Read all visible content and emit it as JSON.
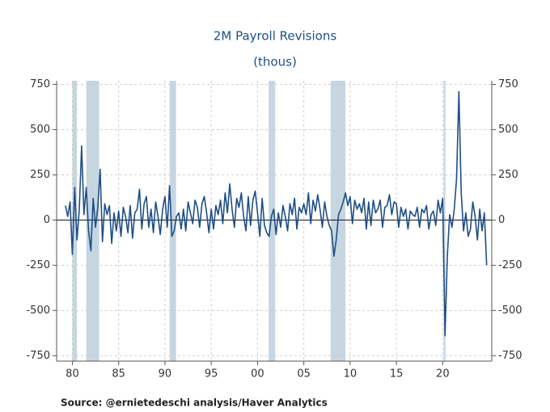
{
  "chart_data": {
    "type": "line",
    "title": "2M Payroll Revisions",
    "subtitle": "(thous)",
    "source": "Source:  @ernietedeschi analysis/Haver Analytics",
    "color": "#1f4e86",
    "recession_color": "#c6d6e1",
    "grid": true,
    "xlim": [
      1978.3,
      2025.3
    ],
    "xticks": [
      {
        "value": 1980,
        "label": "80"
      },
      {
        "value": 1985,
        "label": "85"
      },
      {
        "value": 1990,
        "label": "90"
      },
      {
        "value": 1995,
        "label": "95"
      },
      {
        "value": 2000,
        "label": "00"
      },
      {
        "value": 2005,
        "label": "05"
      },
      {
        "value": 2010,
        "label": "10"
      },
      {
        "value": 2015,
        "label": "15"
      },
      {
        "value": 2020,
        "label": "20"
      }
    ],
    "ylim": [
      -780,
      770
    ],
    "yticks": [
      -750,
      -500,
      -250,
      0,
      250,
      500,
      750
    ],
    "recessions": [
      [
        1980.0,
        1980.5
      ],
      [
        1981.5,
        1982.9
      ],
      [
        1990.5,
        1991.2
      ],
      [
        2001.2,
        2001.9
      ],
      [
        2007.9,
        2009.5
      ],
      [
        2020.1,
        2020.3
      ]
    ],
    "x": [
      1979.25,
      1979.5,
      1979.75,
      1980,
      1980.25,
      1980.5,
      1980.75,
      1981,
      1981.25,
      1981.5,
      1981.75,
      1982,
      1982.25,
      1982.5,
      1982.75,
      1983,
      1983.25,
      1983.5,
      1983.75,
      1984,
      1984.25,
      1984.5,
      1984.75,
      1985,
      1985.25,
      1985.5,
      1985.75,
      1986,
      1986.25,
      1986.5,
      1986.75,
      1987,
      1987.25,
      1987.5,
      1987.75,
      1988,
      1988.25,
      1988.5,
      1988.75,
      1989,
      1989.25,
      1989.5,
      1989.75,
      1990,
      1990.25,
      1990.5,
      1990.75,
      1991,
      1991.25,
      1991.5,
      1991.75,
      1992,
      1992.25,
      1992.5,
      1992.75,
      1993,
      1993.25,
      1993.5,
      1993.75,
      1994,
      1994.25,
      1994.5,
      1994.75,
      1995,
      1995.25,
      1995.5,
      1995.75,
      1996,
      1996.25,
      1996.5,
      1996.75,
      1997,
      1997.25,
      1997.5,
      1997.75,
      1998,
      1998.25,
      1998.5,
      1998.75,
      1999,
      1999.25,
      1999.5,
      1999.75,
      2000,
      2000.25,
      2000.5,
      2000.75,
      2001,
      2001.25,
      2001.5,
      2001.75,
      2002,
      2002.25,
      2002.5,
      2002.75,
      2003,
      2003.25,
      2003.5,
      2003.75,
      2004,
      2004.25,
      2004.5,
      2004.75,
      2005,
      2005.25,
      2005.5,
      2005.75,
      2006,
      2006.25,
      2006.5,
      2006.75,
      2007,
      2007.25,
      2007.5,
      2007.75,
      2008,
      2008.25,
      2008.5,
      2008.75,
      2009,
      2009.25,
      2009.5,
      2009.75,
      2010,
      2010.25,
      2010.5,
      2010.75,
      2011,
      2011.25,
      2011.5,
      2011.75,
      2012,
      2012.25,
      2012.5,
      2012.75,
      2013,
      2013.25,
      2013.5,
      2013.75,
      2014,
      2014.25,
      2014.5,
      2014.75,
      2015,
      2015.25,
      2015.5,
      2015.75,
      2016,
      2016.25,
      2016.5,
      2016.75,
      2017,
      2017.25,
      2017.5,
      2017.75,
      2018,
      2018.25,
      2018.5,
      2018.75,
      2019,
      2019.25,
      2019.5,
      2019.75,
      2020,
      2020.25,
      2020.5,
      2020.75,
      2021,
      2021.25,
      2021.5,
      2021.75,
      2022,
      2022.25,
      2022.5,
      2022.75,
      2023,
      2023.25,
      2023.5,
      2023.75,
      2024,
      2024.25,
      2024.5,
      2024.75
    ],
    "values": [
      80,
      20,
      100,
      -190,
      180,
      -110,
      60,
      410,
      30,
      180,
      -60,
      -170,
      120,
      -40,
      70,
      280,
      -120,
      90,
      30,
      80,
      -130,
      40,
      -60,
      50,
      -90,
      70,
      20,
      -70,
      80,
      -100,
      40,
      60,
      170,
      -50,
      90,
      130,
      -40,
      60,
      -70,
      100,
      20,
      -80,
      60,
      130,
      -40,
      190,
      -90,
      -60,
      20,
      40,
      -50,
      60,
      -60,
      100,
      40,
      -20,
      110,
      70,
      -40,
      90,
      130,
      40,
      -70,
      60,
      -50,
      80,
      30,
      110,
      -20,
      150,
      40,
      200,
      60,
      -40,
      120,
      70,
      150,
      20,
      -60,
      130,
      -30,
      110,
      160,
      40,
      -90,
      120,
      -30,
      -70,
      -90,
      20,
      60,
      -80,
      40,
      -40,
      80,
      20,
      -60,
      90,
      30,
      120,
      -50,
      70,
      40,
      90,
      30,
      150,
      -20,
      110,
      50,
      140,
      60,
      -40,
      100,
      20,
      -30,
      -60,
      -200,
      -110,
      30,
      60,
      100,
      150,
      80,
      130,
      -20,
      110,
      60,
      90,
      40,
      120,
      -50,
      100,
      -30,
      110,
      40,
      60,
      110,
      -40,
      70,
      80,
      140,
      30,
      100,
      90,
      -40,
      70,
      20,
      60,
      -50,
      50,
      30,
      20,
      70,
      -40,
      60,
      40,
      80,
      -50,
      30,
      50,
      -30,
      110,
      40,
      120,
      -640,
      -200,
      30,
      -40,
      60,
      230,
      710,
      150,
      -60,
      40,
      -90,
      -50,
      100,
      20,
      -110,
      60,
      -60,
      40,
      -250
    ]
  }
}
